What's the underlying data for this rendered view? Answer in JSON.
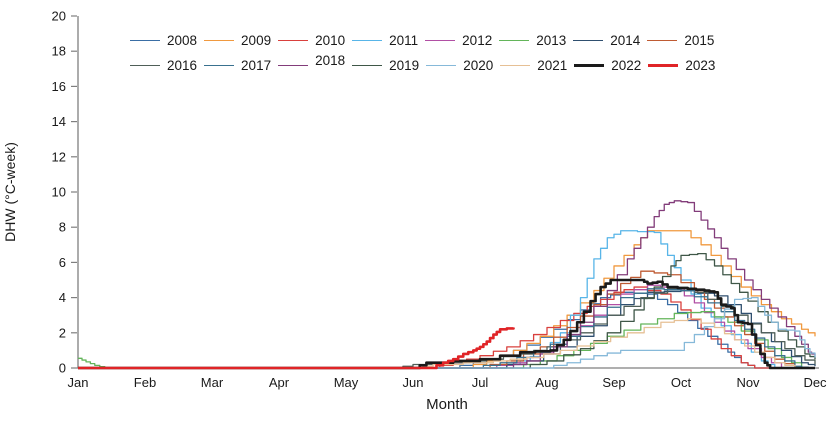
{
  "chart_data": {
    "type": "line",
    "title": "",
    "xlabel": "Month",
    "ylabel": "DHW (°C-week)",
    "x_unit": "month index, 0 = Jan tick ... 11 = Dec tick",
    "x_ticks": [
      "Jan",
      "Feb",
      "Mar",
      "Apr",
      "May",
      "Jun",
      "Jul",
      "Aug",
      "Sep",
      "Oct",
      "Nov",
      "Dec"
    ],
    "y_ticks": [
      0,
      2,
      4,
      6,
      8,
      10,
      12,
      14,
      16,
      18,
      20
    ],
    "ylim": [
      0,
      20
    ],
    "grid": false,
    "legend_position": "top-inside",
    "legend_rows": [
      [
        "2008",
        "2009",
        "2010",
        "2011",
        "2012",
        "2013",
        "2014",
        "2015"
      ],
      [
        "2016",
        "2017",
        "2018",
        "2019",
        "2020",
        "2021",
        "2022",
        "2023"
      ]
    ],
    "series": [
      {
        "name": "2008",
        "color": "#3a6ea5",
        "width": 1.3,
        "points": [
          [
            0,
            0
          ],
          [
            5.5,
            0
          ],
          [
            5.9,
            0.3
          ],
          [
            6.3,
            0.7
          ],
          [
            6.7,
            1.3
          ],
          [
            7.1,
            2.2
          ],
          [
            7.5,
            3.3
          ],
          [
            7.8,
            4.0
          ],
          [
            8.1,
            4.3
          ],
          [
            8.5,
            4.2
          ],
          [
            8.8,
            3.6
          ],
          [
            9.1,
            2.7
          ],
          [
            9.4,
            1.8
          ],
          [
            9.7,
            0.9
          ],
          [
            9.9,
            0.3
          ],
          [
            10.1,
            0
          ],
          [
            11,
            0
          ]
        ]
      },
      {
        "name": "2009",
        "color": "#f0993f",
        "width": 1.3,
        "points": [
          [
            0,
            0
          ],
          [
            5.7,
            0
          ],
          [
            6.1,
            0.4
          ],
          [
            6.5,
            1.0
          ],
          [
            6.9,
            1.8
          ],
          [
            7.3,
            3.0
          ],
          [
            7.7,
            4.4
          ],
          [
            8.0,
            5.8
          ],
          [
            8.3,
            7.0
          ],
          [
            8.5,
            7.8
          ],
          [
            9.0,
            7.8
          ],
          [
            9.3,
            7.0
          ],
          [
            9.6,
            5.8
          ],
          [
            9.9,
            4.6
          ],
          [
            10.2,
            3.6
          ],
          [
            10.5,
            2.8
          ],
          [
            10.8,
            2.2
          ],
          [
            11,
            1.8
          ]
        ]
      },
      {
        "name": "2010",
        "color": "#d9403d",
        "width": 1.3,
        "points": [
          [
            0,
            0
          ],
          [
            5.2,
            0
          ],
          [
            5.6,
            0.3
          ],
          [
            6.0,
            0.7
          ],
          [
            6.4,
            1.2
          ],
          [
            6.8,
            1.9
          ],
          [
            7.2,
            2.7
          ],
          [
            7.6,
            3.5
          ],
          [
            8.0,
            4.3
          ],
          [
            8.3,
            4.6
          ],
          [
            8.7,
            4.2
          ],
          [
            9.0,
            3.3
          ],
          [
            9.3,
            2.2
          ],
          [
            9.6,
            1.1
          ],
          [
            9.9,
            0.3
          ],
          [
            10.1,
            0
          ],
          [
            11,
            0
          ]
        ]
      },
      {
        "name": "2011",
        "color": "#58b5e8",
        "width": 1.3,
        "points": [
          [
            0,
            0
          ],
          [
            6.2,
            0
          ],
          [
            6.6,
            0.4
          ],
          [
            6.9,
            0.9
          ],
          [
            7.2,
            2.0
          ],
          [
            7.5,
            4.0
          ],
          [
            7.7,
            6.2
          ],
          [
            7.9,
            7.4
          ],
          [
            8.1,
            7.8
          ],
          [
            8.6,
            7.7
          ],
          [
            8.8,
            6.4
          ],
          [
            9.0,
            5.0
          ],
          [
            9.3,
            3.4
          ],
          [
            9.6,
            2.4
          ],
          [
            9.9,
            1.4
          ],
          [
            10.2,
            0.4
          ],
          [
            10.4,
            0
          ],
          [
            11,
            0
          ]
        ]
      },
      {
        "name": "2012",
        "color": "#b14fa4",
        "width": 1.3,
        "points": [
          [
            0,
            0
          ],
          [
            6.0,
            0
          ],
          [
            6.5,
            0.3
          ],
          [
            6.9,
            0.9
          ],
          [
            7.3,
            1.8
          ],
          [
            7.7,
            3.0
          ],
          [
            8.1,
            4.2
          ],
          [
            8.5,
            4.7
          ],
          [
            8.9,
            4.5
          ],
          [
            9.2,
            3.7
          ],
          [
            9.5,
            2.6
          ],
          [
            9.8,
            1.6
          ],
          [
            10.2,
            0.6
          ],
          [
            10.5,
            0
          ],
          [
            11,
            0
          ]
        ]
      },
      {
        "name": "2013",
        "color": "#63b55a",
        "width": 1.3,
        "points": [
          [
            0,
            0.55
          ],
          [
            0.12,
            0.35
          ],
          [
            0.25,
            0.15
          ],
          [
            0.4,
            0
          ],
          [
            6.4,
            0
          ],
          [
            6.9,
            0.4
          ],
          [
            7.4,
            1.0
          ],
          [
            7.9,
            1.8
          ],
          [
            8.4,
            2.5
          ],
          [
            8.9,
            3.1
          ],
          [
            9.3,
            3.2
          ],
          [
            9.7,
            2.6
          ],
          [
            10.1,
            1.6
          ],
          [
            10.5,
            0.6
          ],
          [
            10.8,
            0
          ],
          [
            11,
            0
          ]
        ]
      },
      {
        "name": "2014",
        "color": "#2f4f6f",
        "width": 1.3,
        "points": [
          [
            0,
            0
          ],
          [
            6.1,
            0
          ],
          [
            6.7,
            0.4
          ],
          [
            7.2,
            1.2
          ],
          [
            7.7,
            2.4
          ],
          [
            8.1,
            3.6
          ],
          [
            8.5,
            4.3
          ],
          [
            9.0,
            4.4
          ],
          [
            9.5,
            4.1
          ],
          [
            9.9,
            3.1
          ],
          [
            10.2,
            2.0
          ],
          [
            10.5,
            1.0
          ],
          [
            10.8,
            0.3
          ],
          [
            11,
            0.1
          ]
        ]
      },
      {
        "name": "2015",
        "color": "#bf5b33",
        "width": 1.3,
        "points": [
          [
            0,
            0
          ],
          [
            5.9,
            0
          ],
          [
            6.4,
            0.4
          ],
          [
            6.9,
            1.2
          ],
          [
            7.3,
            2.3
          ],
          [
            7.7,
            3.6
          ],
          [
            8.1,
            4.8
          ],
          [
            8.4,
            5.5
          ],
          [
            8.8,
            5.3
          ],
          [
            9.2,
            4.4
          ],
          [
            9.5,
            3.4
          ],
          [
            9.8,
            2.4
          ],
          [
            10.1,
            1.4
          ],
          [
            10.4,
            0.5
          ],
          [
            10.7,
            0
          ],
          [
            11,
            0
          ]
        ]
      },
      {
        "name": "2016",
        "color": "#4f5f58",
        "width": 1.3,
        "points": [
          [
            0,
            0
          ],
          [
            4.7,
            0
          ],
          [
            5.0,
            0.2
          ],
          [
            5.6,
            0.3
          ],
          [
            6.1,
            0.5
          ],
          [
            6.6,
            0.8
          ],
          [
            7.0,
            1.2
          ],
          [
            7.5,
            2.0
          ],
          [
            7.9,
            3.0
          ],
          [
            8.4,
            4.0
          ],
          [
            8.8,
            4.5
          ],
          [
            9.2,
            4.3
          ],
          [
            9.6,
            3.5
          ],
          [
            10.0,
            2.5
          ],
          [
            10.4,
            1.5
          ],
          [
            10.7,
            0.7
          ],
          [
            11,
            0.2
          ]
        ]
      },
      {
        "name": "2017",
        "color": "#39718f",
        "width": 1.3,
        "points": [
          [
            0,
            0
          ],
          [
            5.8,
            0
          ],
          [
            6.3,
            0.3
          ],
          [
            6.8,
            0.9
          ],
          [
            7.3,
            1.8
          ],
          [
            7.7,
            2.9
          ],
          [
            8.1,
            4.0
          ],
          [
            8.5,
            4.5
          ],
          [
            9.0,
            4.4
          ],
          [
            9.4,
            3.7
          ],
          [
            9.8,
            2.7
          ],
          [
            10.1,
            1.7
          ],
          [
            10.4,
            0.7
          ],
          [
            10.7,
            0.1
          ],
          [
            10.9,
            0
          ],
          [
            11,
            0
          ]
        ]
      },
      {
        "name": "2018",
        "color": "#823c7a",
        "width": 1.3,
        "points": [
          [
            0,
            0
          ],
          [
            6.3,
            0
          ],
          [
            6.7,
            0.4
          ],
          [
            7.1,
            1.2
          ],
          [
            7.5,
            2.6
          ],
          [
            7.9,
            4.4
          ],
          [
            8.2,
            6.2
          ],
          [
            8.4,
            7.4
          ],
          [
            8.6,
            8.6
          ],
          [
            8.75,
            9.3
          ],
          [
            8.9,
            9.5
          ],
          [
            9.1,
            9.4
          ],
          [
            9.3,
            8.4
          ],
          [
            9.5,
            7.4
          ],
          [
            9.7,
            6.2
          ],
          [
            9.95,
            5.0
          ],
          [
            10.2,
            3.9
          ],
          [
            10.45,
            2.9
          ],
          [
            10.7,
            1.8
          ],
          [
            10.9,
            0.9
          ],
          [
            11,
            0.7
          ]
        ]
      },
      {
        "name": "2019",
        "color": "#3f5748",
        "width": 1.3,
        "points": [
          [
            0,
            0
          ],
          [
            6.5,
            0
          ],
          [
            7.0,
            0.4
          ],
          [
            7.5,
            1.1
          ],
          [
            7.9,
            2.0
          ],
          [
            8.3,
            3.3
          ],
          [
            8.6,
            4.6
          ],
          [
            8.85,
            5.8
          ],
          [
            9.0,
            6.4
          ],
          [
            9.25,
            6.5
          ],
          [
            9.5,
            5.8
          ],
          [
            9.75,
            4.8
          ],
          [
            10.0,
            3.8
          ],
          [
            10.3,
            2.6
          ],
          [
            10.6,
            1.6
          ],
          [
            10.85,
            0.8
          ],
          [
            11,
            0.5
          ]
        ]
      },
      {
        "name": "2020",
        "color": "#86b9d9",
        "width": 1.3,
        "points": [
          [
            0,
            0
          ],
          [
            6.9,
            0
          ],
          [
            7.3,
            0.3
          ],
          [
            7.7,
            0.7
          ],
          [
            8.1,
            1.0
          ],
          [
            8.9,
            1.0
          ],
          [
            9.2,
            1.9
          ],
          [
            9.5,
            2.8
          ],
          [
            9.8,
            3.9
          ],
          [
            10.05,
            4.0
          ],
          [
            10.25,
            3.0
          ],
          [
            10.45,
            2.2
          ],
          [
            10.7,
            2.1
          ],
          [
            10.85,
            1.1
          ],
          [
            11,
            0.6
          ]
        ]
      },
      {
        "name": "2021",
        "color": "#e6c095",
        "width": 1.3,
        "points": [
          [
            0,
            0
          ],
          [
            5.0,
            0
          ],
          [
            5.3,
            0.2
          ],
          [
            6.2,
            0.4
          ],
          [
            6.7,
            0.6
          ],
          [
            7.2,
            1.0
          ],
          [
            7.7,
            1.5
          ],
          [
            8.2,
            2.0
          ],
          [
            8.7,
            2.6
          ],
          [
            9.1,
            2.8
          ],
          [
            9.5,
            2.3
          ],
          [
            9.8,
            1.6
          ],
          [
            10.1,
            0.9
          ],
          [
            10.4,
            0.3
          ],
          [
            10.7,
            0
          ],
          [
            11,
            0
          ]
        ]
      },
      {
        "name": "2022",
        "color": "#1a1a1a",
        "width": 2.6,
        "points": [
          [
            0,
            0
          ],
          [
            5.0,
            0
          ],
          [
            5.2,
            0.3
          ],
          [
            6.0,
            0.5
          ],
          [
            6.6,
            0.9
          ],
          [
            7.05,
            1.0
          ],
          [
            7.25,
            1.6
          ],
          [
            7.45,
            2.6
          ],
          [
            7.65,
            3.8
          ],
          [
            7.8,
            4.6
          ],
          [
            7.95,
            5.0
          ],
          [
            8.4,
            5.0
          ],
          [
            8.5,
            4.8
          ],
          [
            8.65,
            4.9
          ],
          [
            8.8,
            4.6
          ],
          [
            9.1,
            4.5
          ],
          [
            9.35,
            4.4
          ],
          [
            9.5,
            4.3
          ],
          [
            9.6,
            3.6
          ],
          [
            9.75,
            3.4
          ],
          [
            9.85,
            2.6
          ],
          [
            10.0,
            2.5
          ],
          [
            10.12,
            1.3
          ],
          [
            10.25,
            0.3
          ],
          [
            10.33,
            0
          ],
          [
            11,
            0
          ]
        ]
      },
      {
        "name": "2023",
        "color": "#e02427",
        "width": 2.6,
        "points": [
          [
            0,
            0
          ],
          [
            5.25,
            0
          ],
          [
            5.45,
            0.3
          ],
          [
            5.6,
            0.5
          ],
          [
            5.75,
            0.8
          ],
          [
            5.9,
            1.0
          ],
          [
            6.0,
            1.2
          ],
          [
            6.1,
            1.5
          ],
          [
            6.2,
            1.9
          ],
          [
            6.3,
            2.2
          ],
          [
            6.5,
            2.3
          ]
        ]
      }
    ]
  }
}
